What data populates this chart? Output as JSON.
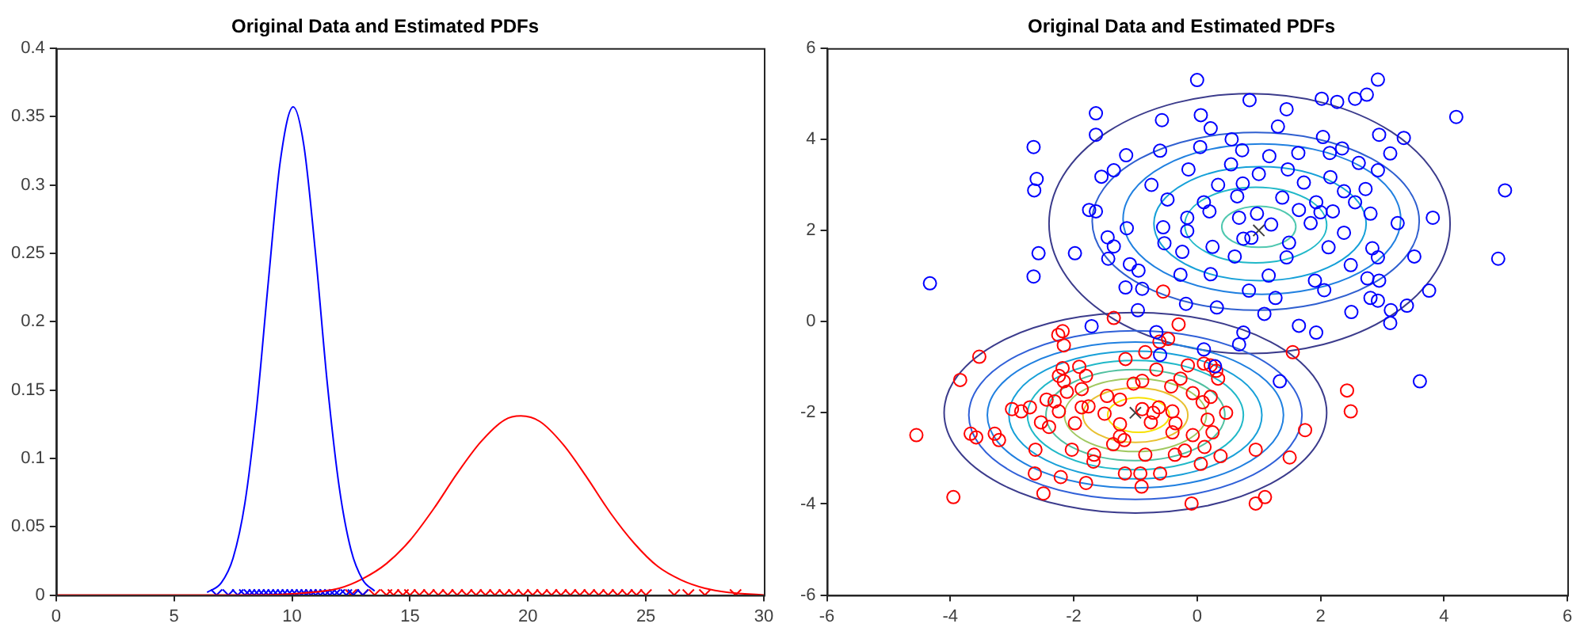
{
  "chart_data": [
    {
      "type": "line",
      "title": "Original Data and Estimated PDFs",
      "xlim": [
        0,
        30
      ],
      "xticks": [
        0,
        5,
        10,
        15,
        20,
        25,
        30
      ],
      "ylim": [
        0,
        0.4
      ],
      "yticks": [
        0,
        0.05,
        0.1,
        0.15,
        0.2,
        0.25,
        0.3,
        0.35,
        0.4
      ],
      "series": [
        {
          "color": "#0000ff",
          "x": [
            6.4,
            7,
            7.5,
            8,
            8.5,
            9,
            9.5,
            10.05,
            10.5,
            11,
            11.5,
            12,
            12.5,
            13,
            13.5
          ],
          "values": [
            0.002,
            0.009,
            0.027,
            0.067,
            0.137,
            0.23,
            0.317,
            0.357,
            0.329,
            0.249,
            0.154,
            0.079,
            0.033,
            0.011,
            0.003
          ]
        },
        {
          "color": "#ff0000",
          "x": [
            0,
            5,
            8,
            10,
            12,
            13,
            14,
            15,
            16,
            17,
            18,
            19,
            19.7,
            20.5,
            21.5,
            22.5,
            23.5,
            24.5,
            25.5,
            26.5,
            27.5,
            28.5,
            30
          ],
          "values": [
            0,
            0,
            0,
            0.001,
            0.005,
            0.012,
            0.023,
            0.04,
            0.063,
            0.089,
            0.112,
            0.128,
            0.131,
            0.127,
            0.11,
            0.086,
            0.06,
            0.038,
            0.021,
            0.011,
            0.005,
            0.002,
            0
          ]
        },
        {
          "type": "scatter",
          "marker": "cross",
          "color": "#0000ff",
          "x": [
            6.8,
            7.3,
            7.7,
            8,
            8.2,
            8.4,
            8.6,
            8.8,
            9,
            9.2,
            9.4,
            9.6,
            9.8,
            10,
            10.2,
            10.4,
            10.6,
            10.8,
            11,
            11.2,
            11.4,
            11.6,
            11.8,
            12,
            12.3,
            12.6,
            13
          ],
          "values": [
            0,
            0,
            0,
            0,
            0,
            0,
            0,
            0,
            0,
            0,
            0,
            0,
            0,
            0,
            0,
            0,
            0,
            0,
            0,
            0,
            0,
            0,
            0,
            0,
            0,
            0,
            0
          ]
        },
        {
          "type": "scatter",
          "marker": "cross",
          "color": "#ff0000",
          "x": [
            10.8,
            12.5,
            13,
            13.5,
            14,
            14.3,
            14.7,
            15,
            15.4,
            15.8,
            16.2,
            16.6,
            17,
            17.4,
            17.8,
            18.2,
            18.6,
            19,
            19.4,
            19.8,
            20.2,
            20.6,
            21,
            21.4,
            21.8,
            22.2,
            22.6,
            23,
            23.4,
            23.8,
            24.2,
            24.6,
            25,
            26.2,
            26.8,
            27.5,
            28.8
          ],
          "values": [
            0,
            0,
            0,
            0,
            0,
            0,
            0,
            0,
            0,
            0,
            0,
            0,
            0,
            0,
            0,
            0,
            0,
            0,
            0,
            0,
            0,
            0,
            0,
            0,
            0,
            0,
            0,
            0,
            0,
            0,
            0,
            0,
            0,
            0,
            0,
            0,
            0
          ]
        }
      ]
    },
    {
      "type": "scatter",
      "title": "Original Data and Estimated PDFs",
      "xlim": [
        -6,
        6
      ],
      "xticks": [
        -6,
        -4,
        -2,
        0,
        2,
        4,
        6
      ],
      "ylim": [
        -6,
        6
      ],
      "yticks": [
        -6,
        -4,
        -2,
        0,
        2,
        4,
        6
      ],
      "series": [
        {
          "marker": "circle",
          "color": "#0000ff",
          "x": [
            0,
            2.93,
            2.02,
            2.27,
            2.56,
            2.75,
            0.85,
            1.45,
            0.06,
            4.2,
            -0.57,
            -1.64,
            -1.64,
            -2.65,
            1.31,
            0.22,
            2.95,
            3.35,
            2.04,
            0.56,
            -1.15,
            -0.6,
            0.05,
            0.73,
            1.17,
            1.64,
            2.15,
            2.35,
            3.13,
            2.62,
            -1.35,
            -1.55,
            -2.6,
            -2.64,
            -0.14,
            0.55,
            1,
            1.47,
            2.93,
            1.73,
            2.16,
            -0.74,
            0.34,
            0.74,
            2.73,
            4.99,
            -0.48,
            0.11,
            0.65,
            1.38,
            1.93,
            2.38,
            2.56,
            -1.75,
            -1.64,
            -0.16,
            0.2,
            0.97,
            1.65,
            2,
            2.2,
            2.81,
            3.82,
            -1.14,
            -0.55,
            -0.16,
            0.68,
            1.2,
            1.84,
            2.38,
            3.25,
            -1.98,
            -2.57,
            -1.45,
            -1.35,
            -0.53,
            0.75,
            0.88,
            1.49,
            2.13,
            2.84,
            -1.44,
            -1.09,
            -0.24,
            0.25,
            0.61,
            1.45,
            2.49,
            2.93,
            3.52,
            4.88,
            -4.33,
            -2.65,
            -0.95,
            -0.27,
            0.22,
            1.16,
            1.91,
            2.76,
            2.95,
            -1.16,
            -0.89,
            0.84,
            2.06,
            3.76,
            -0.18,
            0.32,
            1.27,
            2.81,
            2.93,
            3.4,
            -0.96,
            1.09,
            2.5,
            3.14,
            3.13,
            -1.71,
            1.65,
            1.93,
            -0.66,
            0.75,
            0.68,
            0.11,
            -0.6,
            0.29,
            1.34,
            3.61
          ],
          "values": [
            5.3,
            5.31,
            4.89,
            4.82,
            4.89,
            4.98,
            4.86,
            4.66,
            4.53,
            4.49,
            4.42,
            4.57,
            4.1,
            3.83,
            4.28,
            4.24,
            4.1,
            4.03,
            4.05,
            4,
            3.65,
            3.75,
            3.83,
            3.76,
            3.63,
            3.7,
            3.7,
            3.8,
            3.69,
            3.48,
            3.32,
            3.18,
            3.13,
            2.88,
            3.34,
            3.45,
            3.24,
            3.34,
            3.32,
            3.05,
            3.17,
            3,
            3,
            3.03,
            2.91,
            2.88,
            2.68,
            2.62,
            2.75,
            2.72,
            2.62,
            2.86,
            2.62,
            2.45,
            2.42,
            2.28,
            2.42,
            2.37,
            2.45,
            2.4,
            2.42,
            2.37,
            2.28,
            2.05,
            2.07,
            1.99,
            2.28,
            2.13,
            2.16,
            1.95,
            2.16,
            1.5,
            1.5,
            1.85,
            1.65,
            1.72,
            1.82,
            1.84,
            1.73,
            1.63,
            1.61,
            1.38,
            1.26,
            1.53,
            1.64,
            1.43,
            1.41,
            1.24,
            1.41,
            1.43,
            1.38,
            0.84,
            0.99,
            1.12,
            1.03,
            1.04,
            1.01,
            0.9,
            0.95,
            0.9,
            0.75,
            0.72,
            0.68,
            0.69,
            0.68,
            0.39,
            0.31,
            0.52,
            0.52,
            0.46,
            0.35,
            0.25,
            0.17,
            0.21,
            0.25,
            -0.03,
            -0.1,
            -0.09,
            -0.24,
            -0.23,
            -0.24,
            -0.5,
            -0.61,
            -0.73,
            -0.98,
            -1.31,
            -1.31
          ]
        },
        {
          "marker": "circle",
          "color": "#ff0000",
          "x": [
            -0.55,
            -1.35,
            -0.3,
            -2.18,
            -2.25,
            -2.16,
            -3.53,
            -3.84,
            -1.16,
            -0.84,
            -0.61,
            -0.47,
            1.55,
            -2.18,
            -1.91,
            -1.8,
            -0.66,
            -0.15,
            0.11,
            0.22,
            0.34,
            -2.16,
            -2.11,
            -1.87,
            -1.03,
            -0.42,
            -0.27,
            -2.44,
            -2.31,
            -1.46,
            -1.25,
            -0.07,
            0.09,
            0.22,
            2.43,
            -3,
            -2.85,
            -2.71,
            -2.24,
            -1.76,
            -0.89,
            -0.71,
            -0.4,
            0.47,
            2.49,
            -2.53,
            -2.4,
            -1.25,
            -0.75,
            0.17,
            -4.55,
            -3.67,
            -3.58,
            -3.28,
            -3.21,
            -1.25,
            -1.18,
            -1.36,
            -0.4,
            -0.07,
            0.25,
            1.75,
            -2.62,
            -2.03,
            -1.67,
            -0.84,
            -0.36,
            -0.2,
            0.12,
            0.95,
            0.38,
            1.5,
            -1.68,
            0.06,
            -2.63,
            -2.21,
            -1.8,
            -1.17,
            -0.92,
            -0.6,
            -0.9,
            -2.49,
            -3.95,
            -0.09,
            0.95,
            1.1,
            -1.98,
            -1.87,
            -0.89,
            -1.5,
            -0.62,
            -0.35,
            0.31,
            -2.24
          ],
          "values": [
            0.66,
            0.08,
            -0.06,
            -0.21,
            -0.29,
            -0.52,
            -0.77,
            -1.28,
            -0.82,
            -0.67,
            -0.44,
            -0.38,
            -0.67,
            -1.02,
            -0.99,
            -1.19,
            -1.05,
            -0.96,
            -0.92,
            -0.96,
            -1.25,
            -1.31,
            -1.54,
            -1.48,
            -1.36,
            -1.42,
            -1.25,
            -1.71,
            -1.75,
            -1.63,
            -1.71,
            -1.57,
            -1.77,
            -1.65,
            -1.51,
            -1.92,
            -1.97,
            -1.88,
            -1.97,
            -1.86,
            -1.92,
            -2,
            -1.97,
            -2,
            -1.97,
            -2.21,
            -2.31,
            -2.25,
            -2.21,
            -2.15,
            -2.49,
            -2.46,
            -2.54,
            -2.46,
            -2.6,
            -2.52,
            -2.6,
            -2.69,
            -2.43,
            -2.49,
            -2.43,
            -2.38,
            -2.81,
            -2.81,
            -2.92,
            -2.92,
            -2.92,
            -2.83,
            -2.75,
            -2.81,
            -2.95,
            -2.98,
            -3.07,
            -3.12,
            -3.33,
            -3.41,
            -3.54,
            -3.33,
            -3.33,
            -3.33,
            -3.62,
            -3.77,
            -3.85,
            -3.99,
            -3.99,
            -3.85,
            -2.23,
            -1.88,
            -1.3,
            -2.02,
            -1.88,
            -2.23,
            -1.08,
            -1.19
          ]
        },
        {
          "marker": "cross",
          "color": "#404040",
          "x": [
            1,
            -1
          ],
          "values": [
            2,
            -2
          ]
        }
      ]
    }
  ]
}
